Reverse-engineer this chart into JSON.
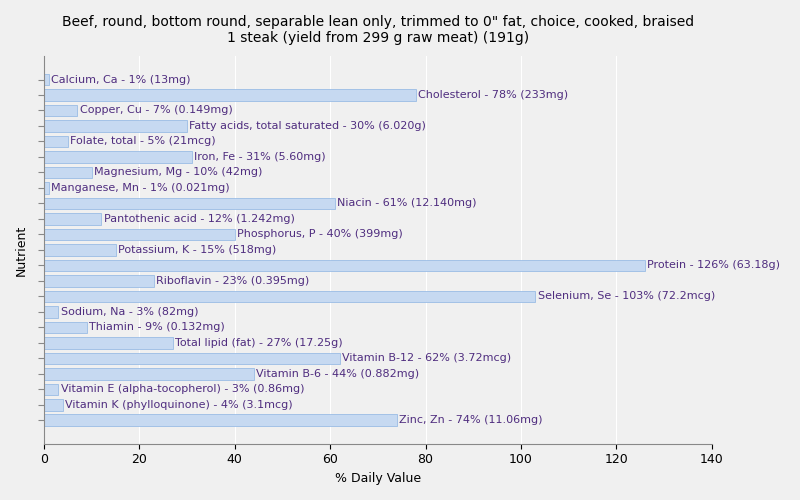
{
  "title": "Beef, round, bottom round, separable lean only, trimmed to 0\" fat, choice, cooked, braised\n1 steak (yield from 299 g raw meat) (191g)",
  "xlabel": "% Daily Value",
  "ylabel": "Nutrient",
  "nutrients": [
    "Calcium, Ca - 1% (13mg)",
    "Cholesterol - 78% (233mg)",
    "Copper, Cu - 7% (0.149mg)",
    "Fatty acids, total saturated - 30% (6.020g)",
    "Folate, total - 5% (21mcg)",
    "Iron, Fe - 31% (5.60mg)",
    "Magnesium, Mg - 10% (42mg)",
    "Manganese, Mn - 1% (0.021mg)",
    "Niacin - 61% (12.140mg)",
    "Pantothenic acid - 12% (1.242mg)",
    "Phosphorus, P - 40% (399mg)",
    "Potassium, K - 15% (518mg)",
    "Protein - 126% (63.18g)",
    "Riboflavin - 23% (0.395mg)",
    "Selenium, Se - 103% (72.2mcg)",
    "Sodium, Na - 3% (82mg)",
    "Thiamin - 9% (0.132mg)",
    "Total lipid (fat) - 27% (17.25g)",
    "Vitamin B-12 - 62% (3.72mcg)",
    "Vitamin B-6 - 44% (0.882mg)",
    "Vitamin E (alpha-tocopherol) - 3% (0.86mg)",
    "Vitamin K (phylloquinone) - 4% (3.1mcg)",
    "Zinc, Zn - 74% (11.06mg)"
  ],
  "values": [
    1,
    78,
    7,
    30,
    5,
    31,
    10,
    1,
    61,
    12,
    40,
    15,
    126,
    23,
    103,
    3,
    9,
    27,
    62,
    44,
    3,
    4,
    74
  ],
  "bar_color": "#c6d9f1",
  "bar_edge_color": "#8db4e2",
  "background_color": "#f0f0f0",
  "plot_bg_color": "#f0f0f0",
  "xlim": [
    0,
    140
  ],
  "xticks": [
    0,
    20,
    40,
    60,
    80,
    100,
    120,
    140
  ],
  "title_fontsize": 10,
  "label_fontsize": 8,
  "axis_fontsize": 9,
  "text_color": "#4f2d7f"
}
